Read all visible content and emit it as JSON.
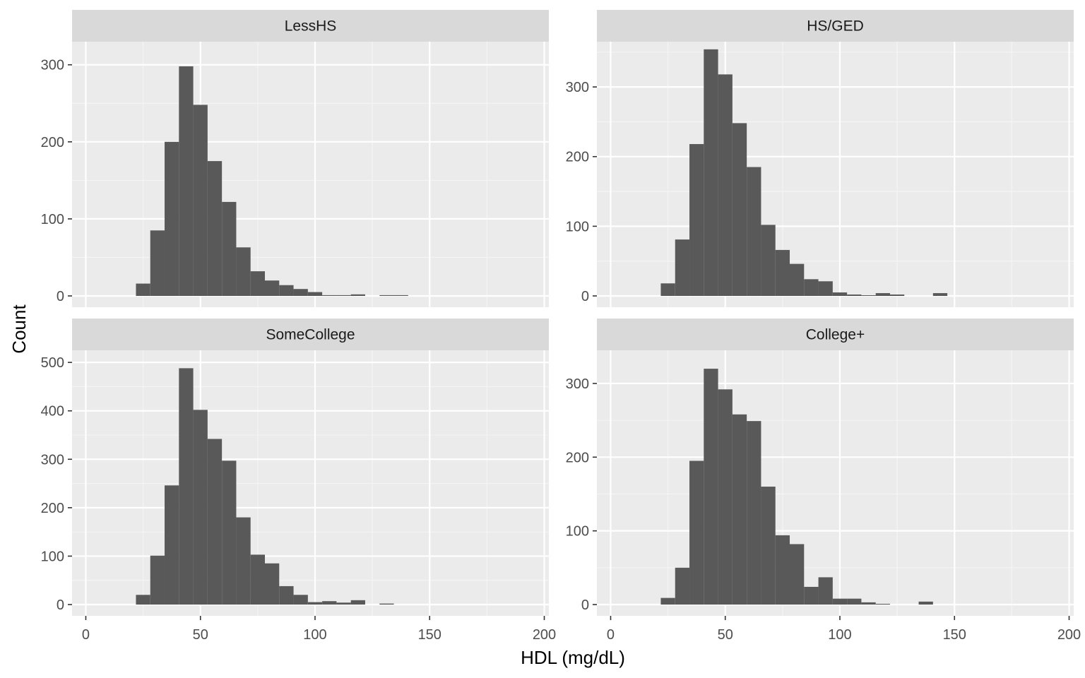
{
  "chart_data": {
    "type": "bar",
    "subtype": "faceted-histogram",
    "xlabel": "HDL (mg/dL)",
    "ylabel": "Count",
    "xlim": [
      -6,
      202
    ],
    "x_ticks": [
      0,
      50,
      100,
      150,
      200
    ],
    "bin_width": 6.25,
    "bin_start": 21.875,
    "bar_color": "#595959",
    "panel_background": "#ebebeb",
    "strip_background": "#d9d9d9",
    "grid": true,
    "facet_layout": "2x2",
    "facets": [
      {
        "label": "LessHS",
        "ylim": [
          0,
          330
        ],
        "y_ticks": [
          0,
          100,
          200,
          300
        ],
        "values": [
          16,
          85,
          200,
          298,
          248,
          175,
          122,
          63,
          32,
          20,
          14,
          9,
          5,
          1,
          1,
          2,
          0,
          1,
          1,
          0
        ]
      },
      {
        "label": "HS/GED",
        "ylim": [
          0,
          365
        ],
        "y_ticks": [
          0,
          100,
          200,
          300
        ],
        "values": [
          18,
          81,
          218,
          354,
          318,
          248,
          185,
          102,
          66,
          46,
          24,
          21,
          5,
          2,
          1,
          4,
          2,
          0,
          0,
          4
        ]
      },
      {
        "label": "SomeCollege",
        "ylim": [
          0,
          525
        ],
        "y_ticks": [
          0,
          100,
          200,
          300,
          400,
          500
        ],
        "values": [
          20,
          101,
          246,
          488,
          402,
          342,
          297,
          180,
          103,
          85,
          38,
          20,
          5,
          7,
          4,
          9,
          0,
          2
        ]
      },
      {
        "label": "College+",
        "ylim": [
          0,
          345
        ],
        "y_ticks": [
          0,
          100,
          200,
          300
        ],
        "values": [
          9,
          50,
          195,
          320,
          292,
          258,
          249,
          160,
          94,
          82,
          24,
          37,
          8,
          8,
          3,
          1,
          0,
          0,
          4,
          0
        ]
      }
    ]
  }
}
